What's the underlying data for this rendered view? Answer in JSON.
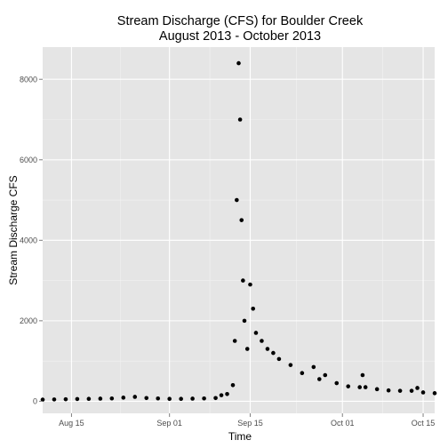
{
  "chart_data": {
    "type": "scatter",
    "title": "Stream Discharge (CFS) for Boulder Creek",
    "subtitle": "August 2013 - October 2013",
    "xlabel": "Time",
    "ylabel": "Stream Discharge CFS",
    "x_ticks": [
      "Aug 15",
      "Sep 01",
      "Sep 15",
      "Oct 01",
      "Oct 15"
    ],
    "y_ticks": [
      "0",
      "2000",
      "4000",
      "6000",
      "8000"
    ],
    "xlim": [
      "2013-08-10",
      "2013-10-17"
    ],
    "ylim": [
      -300,
      8800
    ],
    "grid": true,
    "background": "#e5e5e5",
    "point_color": "#000000",
    "points": {
      "x": [
        "2013-08-10",
        "2013-08-12",
        "2013-08-14",
        "2013-08-16",
        "2013-08-18",
        "2013-08-20",
        "2013-08-22",
        "2013-08-24",
        "2013-08-26",
        "2013-08-28",
        "2013-08-30",
        "2013-09-01",
        "2013-09-03",
        "2013-09-05",
        "2013-09-07",
        "2013-09-09",
        "2013-09-10",
        "2013-09-11",
        "2013-09-12",
        "2013-09-12",
        "2013-09-12",
        "2013-09-13",
        "2013-09-13",
        "2013-09-13",
        "2013-09-13",
        "2013-09-14",
        "2013-09-14",
        "2013-09-15",
        "2013-09-15",
        "2013-09-16",
        "2013-09-17",
        "2013-09-18",
        "2013-09-19",
        "2013-09-20",
        "2013-09-22",
        "2013-09-24",
        "2013-09-26",
        "2013-09-27",
        "2013-09-28",
        "2013-09-30",
        "2013-10-02",
        "2013-10-04",
        "2013-10-04",
        "2013-10-05",
        "2013-10-07",
        "2013-10-09",
        "2013-10-11",
        "2013-10-13",
        "2013-10-14",
        "2013-10-15",
        "2013-10-17"
      ],
      "y": [
        40,
        45,
        50,
        55,
        60,
        65,
        70,
        90,
        110,
        80,
        70,
        60,
        60,
        65,
        70,
        80,
        150,
        180,
        400,
        1500,
        5000,
        8400,
        7000,
        4500,
        3000,
        2000,
        1300,
        2900,
        2300,
        1700,
        1500,
        1300,
        1200,
        1050,
        900,
        700,
        850,
        550,
        650,
        450,
        370,
        350,
        650,
        350,
        300,
        270,
        260,
        260,
        330,
        220,
        200
      ]
    }
  }
}
